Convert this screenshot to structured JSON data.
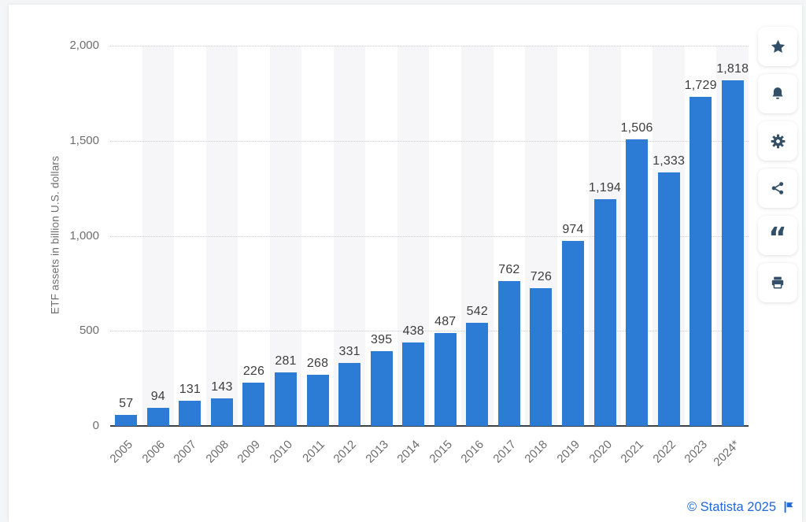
{
  "chart_data": {
    "type": "bar",
    "title": "",
    "categories": [
      "2005",
      "2006",
      "2007",
      "2008",
      "2009",
      "2010",
      "2011",
      "2012",
      "2013",
      "2014",
      "2015",
      "2016",
      "2017",
      "2018",
      "2019",
      "2020",
      "2021",
      "2022",
      "2023",
      "2024*"
    ],
    "values": [
      57,
      94,
      131,
      143,
      226,
      281,
      268,
      331,
      395,
      438,
      487,
      542,
      762,
      726,
      974,
      1194,
      1506,
      1333,
      1729,
      1818
    ],
    "value_labels": [
      "57",
      "94",
      "131",
      "143",
      "226",
      "281",
      "268",
      "331",
      "395",
      "438",
      "487",
      "542",
      "762",
      "726",
      "974",
      "1,194",
      "1,506",
      "1,333",
      "1,729",
      "1,818"
    ],
    "xlabel": "",
    "ylabel": "ETF assets in billion U.S. dollars",
    "ylim": [
      0,
      2000
    ],
    "yticks": [
      {
        "value": 0,
        "label": "0"
      },
      {
        "value": 500,
        "label": "500"
      },
      {
        "value": 1000,
        "label": "1,000"
      },
      {
        "value": 1500,
        "label": "1,500"
      },
      {
        "value": 2000,
        "label": "2,000"
      }
    ],
    "grid": "horizontal-dotted",
    "legend": "none",
    "bar_color": "#2c7bd4",
    "stripe_color": "#f6f6f8"
  },
  "sidebar": {
    "icon_color": "#344f68",
    "buttons": [
      {
        "name": "favorite",
        "icon": "star-icon"
      },
      {
        "name": "notifications",
        "icon": "bell-icon"
      },
      {
        "name": "settings",
        "icon": "gear-icon"
      },
      {
        "name": "share",
        "icon": "share-icon"
      },
      {
        "name": "cite",
        "icon": "quote-icon"
      },
      {
        "name": "print",
        "icon": "printer-icon"
      }
    ]
  },
  "footer": {
    "attribution": "© Statista 2025"
  }
}
